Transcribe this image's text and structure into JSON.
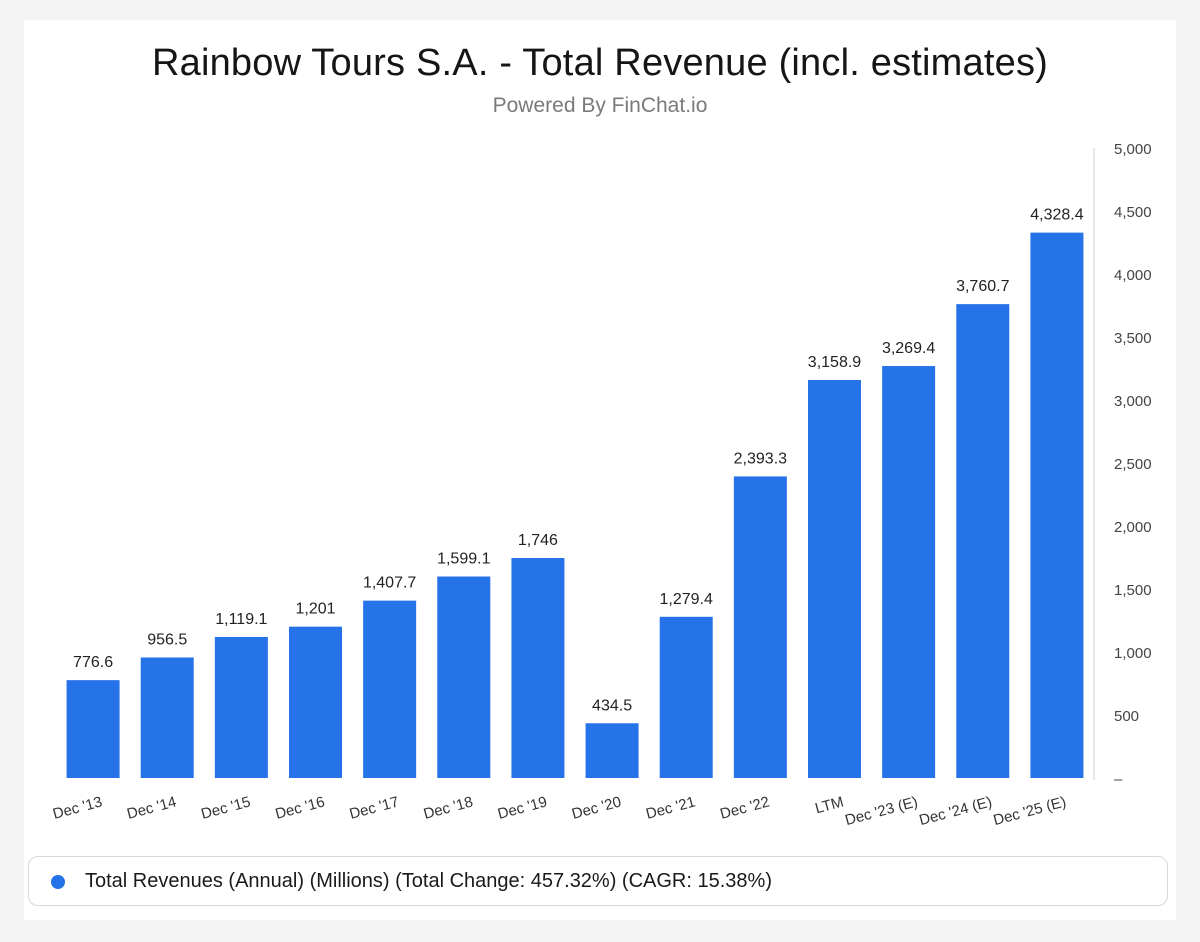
{
  "title": "Rainbow Tours S.A. - Total Revenue (incl. estimates)",
  "subtitle": "Powered By FinChat.io",
  "legend": {
    "label": "Total Revenues (Annual) (Millions) (Total Change: 457.32%) (CAGR: 15.38%)"
  },
  "colors": {
    "bar": "#2672e8",
    "axis": "#cfcfcf",
    "text": "#222222"
  },
  "chart_data": {
    "type": "bar",
    "title": "Rainbow Tours S.A. - Total Revenue (incl. estimates)",
    "xlabel": "",
    "ylabel": "",
    "ylim": [
      0,
      5000
    ],
    "yticks": [
      0,
      500,
      1000,
      1500,
      2000,
      2500,
      3000,
      3500,
      4000,
      4500,
      5000
    ],
    "ytick_labels": [
      "–",
      "500",
      "1,000",
      "1,500",
      "2,000",
      "2,500",
      "3,000",
      "3,500",
      "4,000",
      "4,500",
      "5,000"
    ],
    "y_axis_position": "right",
    "grid": false,
    "categories": [
      "Dec '13",
      "Dec '14",
      "Dec '15",
      "Dec '16",
      "Dec '17",
      "Dec '18",
      "Dec '19",
      "Dec '20",
      "Dec '21",
      "Dec '22",
      "LTM",
      "Dec '23 (E)",
      "Dec '24 (E)",
      "Dec '25 (E)"
    ],
    "values": [
      776.6,
      956.5,
      1119.1,
      1201,
      1407.7,
      1599.1,
      1746,
      434.5,
      1279.4,
      2393.3,
      3158.9,
      3269.4,
      3760.7,
      4328.4
    ],
    "value_labels": [
      "776.6",
      "956.5",
      "1,119.1",
      "1,201",
      "1,407.7",
      "1,599.1",
      "1,746",
      "434.5",
      "1,279.4",
      "2,393.3",
      "3,158.9",
      "3,269.4",
      "3,760.7",
      "4,328.4"
    ],
    "series": [
      {
        "name": "Total Revenues (Annual) (Millions) (Total Change: 457.32%) (CAGR: 15.38%)"
      }
    ]
  }
}
